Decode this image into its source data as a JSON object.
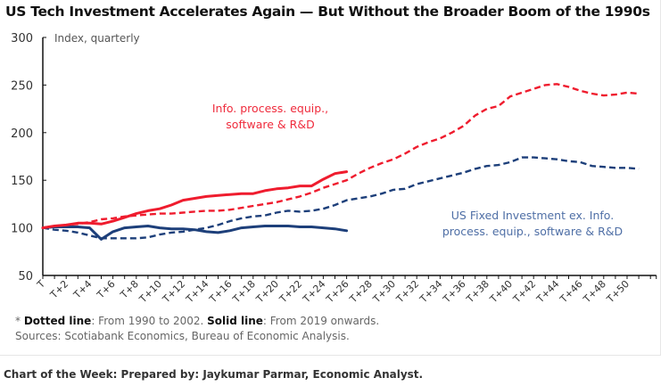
{
  "chart_data": {
    "type": "line",
    "title": "US Tech Investment Accelerates Again — But Without the Broader Boom of the 1990s",
    "ylabel": "Index, quarterly",
    "ylim": [
      50,
      300
    ],
    "yticks": [
      50,
      100,
      150,
      200,
      250,
      300
    ],
    "xlim": [
      0,
      52.5
    ],
    "xtick_labels": [
      "T",
      "T+2",
      "T+4",
      "T+6",
      "T+8",
      "T+10",
      "T+12",
      "T+14",
      "T+16",
      "T+18",
      "T+20",
      "T+22",
      "T+24",
      "T+26",
      "T+28",
      "T+30",
      "T+32",
      "T+34",
      "T+36",
      "T+38",
      "T+40",
      "T+42",
      "T+44",
      "T+46",
      "T+48",
      "T+50"
    ],
    "grid": false,
    "annotations": [
      {
        "text_lines": [
          "Info. process. equip.,",
          "software & R&D"
        ],
        "color": "#ef2b3c"
      },
      {
        "text_lines": [
          "US Fixed Investment ex. Info.",
          "process. equip., software & R&D"
        ],
        "color": "#4f6fa6"
      }
    ],
    "series": [
      {
        "color": "#ef1c2e",
        "style": "solid",
        "values": [
          100,
          102,
          103,
          105,
          105,
          104,
          107,
          111,
          115,
          118,
          120,
          124,
          129,
          131,
          133,
          134,
          135,
          136,
          136,
          139,
          141,
          142,
          144,
          144,
          151,
          157,
          159
        ]
      },
      {
        "color": "#1d3f7a",
        "style": "solid",
        "values": [
          100,
          101,
          101,
          101,
          100,
          88,
          96,
          100,
          101,
          102,
          100,
          99,
          99,
          98,
          96,
          95,
          97,
          100,
          101,
          102,
          102,
          102,
          101,
          101,
          100,
          99,
          97
        ]
      },
      {
        "color": "#ef1c2e",
        "style": "dashed",
        "values": [
          100,
          102,
          103,
          104,
          106,
          109,
          110,
          112,
          113,
          114,
          115,
          115,
          116,
          117,
          118,
          118,
          119,
          121,
          123,
          125,
          127,
          130,
          133,
          137,
          142,
          146,
          150,
          157,
          163,
          168,
          172,
          178,
          185,
          190,
          194,
          200,
          207,
          218,
          225,
          228,
          238,
          242,
          246,
          250,
          251,
          248,
          244,
          241,
          239,
          240,
          242,
          241
        ]
      },
      {
        "color": "#1d3f7a",
        "style": "dashed",
        "values": [
          100,
          98,
          97,
          95,
          92,
          89,
          89,
          89,
          89,
          90,
          93,
          95,
          96,
          98,
          100,
          103,
          107,
          110,
          112,
          113,
          116,
          118,
          117,
          118,
          120,
          124,
          129,
          131,
          133,
          136,
          140,
          141,
          146,
          149,
          152,
          155,
          158,
          162,
          165,
          166,
          169,
          174,
          174,
          173,
          172,
          170,
          169,
          165,
          164,
          163,
          163,
          162
        ]
      }
    ]
  },
  "footnote": {
    "dotted_label": "Dotted line",
    "dotted_text": ": From 1990 to 2002. ",
    "solid_label": "Solid line",
    "solid_text": ": From 2019 onwards.",
    "sources": "Sources: Scotiabank Economics, Bureau of Economic Analysis."
  },
  "credit": "Chart of the Week: Prepared by: Jaykumar Parmar, Economic Analyst."
}
